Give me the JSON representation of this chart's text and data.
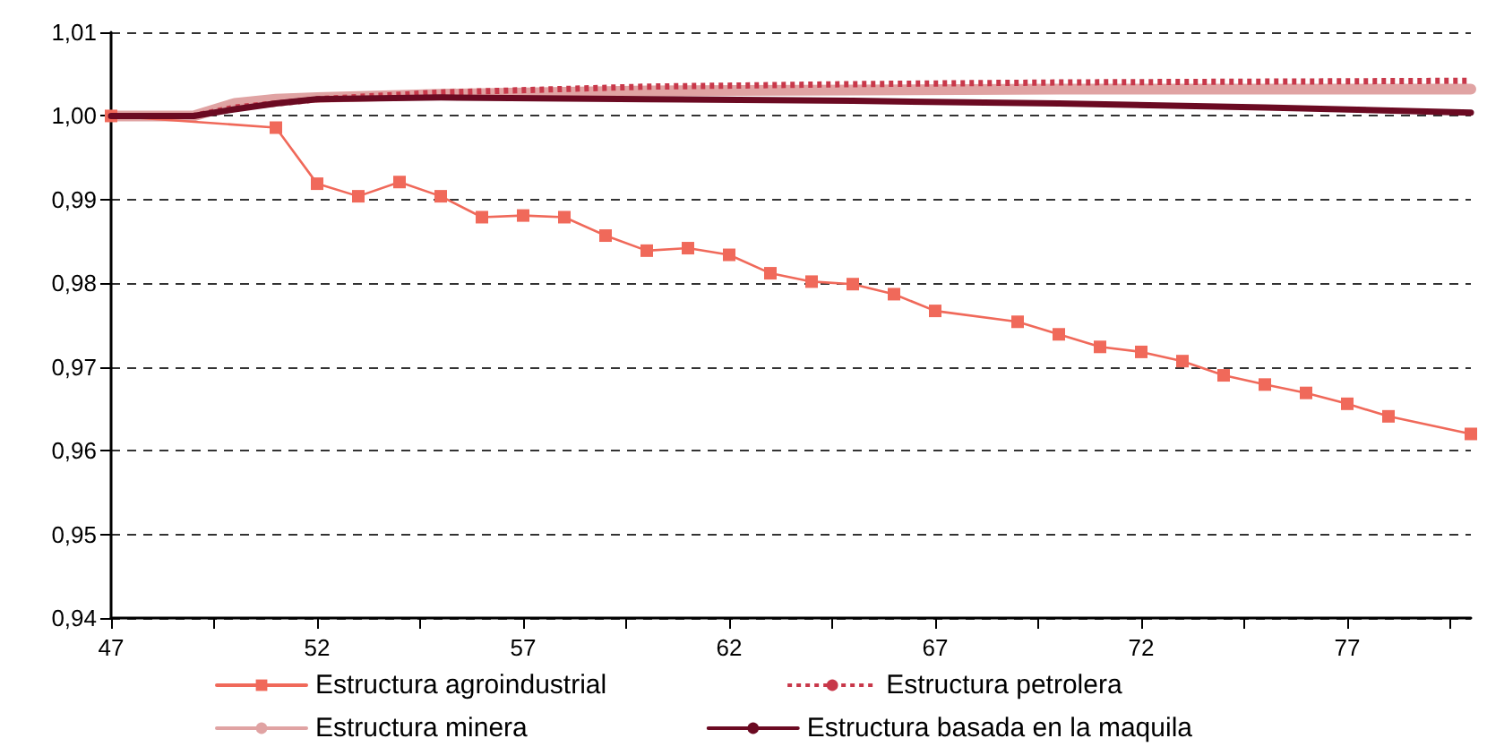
{
  "chart_data": {
    "type": "line",
    "xlim": [
      47,
      80
    ],
    "xticks": [
      47,
      {
        "value": 49.5,
        "label": null
      },
      52,
      {
        "value": 54.5,
        "label": null
      },
      57,
      {
        "value": 59.5,
        "label": null
      },
      62,
      {
        "value": 64.5,
        "label": null
      },
      67,
      {
        "value": 69.5,
        "label": null
      },
      72,
      {
        "value": 74.5,
        "label": null
      },
      77,
      {
        "value": 79.5,
        "label": null
      }
    ],
    "ylim": [
      0.94,
      1.01
    ],
    "yticks": [
      {
        "value": 0.94,
        "label": "0,94"
      },
      {
        "value": 0.95,
        "label": "0,95"
      },
      {
        "value": 0.96,
        "label": "0,96"
      },
      {
        "value": 0.97,
        "label": "0,97"
      },
      {
        "value": 0.98,
        "label": "0,98"
      },
      {
        "value": 0.99,
        "label": "0,99"
      },
      {
        "value": 1.0,
        "label": "1,00"
      },
      {
        "value": 1.01,
        "label": "1,01"
      }
    ],
    "grid": "y",
    "legend": "bottom",
    "series": [
      {
        "name": "Estructura agroindustrial",
        "color": "#f0695a",
        "marker": "square",
        "line_style": "solid",
        "x": [
          47,
          51,
          52,
          53,
          54,
          55,
          56,
          57,
          58,
          59,
          60,
          61,
          62,
          63,
          64,
          65,
          66,
          67,
          69,
          70,
          71,
          72,
          73,
          74,
          75,
          76,
          77,
          78,
          80
        ],
        "values": [
          1.0,
          0.9986,
          0.9919,
          0.9904,
          0.9921,
          0.9904,
          0.9879,
          0.9881,
          0.9879,
          0.9857,
          0.9839,
          0.9842,
          0.9834,
          0.9812,
          0.9802,
          0.9799,
          0.9787,
          0.9767,
          0.9754,
          0.9739,
          0.9724,
          0.9718,
          0.9707,
          0.969,
          0.9679,
          0.9669,
          0.9656,
          0.9641,
          0.962
        ]
      },
      {
        "name": "Estructura minera",
        "color": "#e0a3a3",
        "marker": "none",
        "line_style": "solid",
        "x": [
          47,
          48,
          49,
          50,
          51,
          52,
          55,
          60,
          65,
          70,
          75,
          80
        ],
        "values": [
          1.0,
          1.0,
          1.0,
          1.0015,
          1.002,
          1.0022,
          1.0026,
          1.003,
          1.0031,
          1.0032,
          1.0032,
          1.0032
        ]
      },
      {
        "name": "Estructura petrolera",
        "color": "#c8384a",
        "marker": "none",
        "line_style": "dotted",
        "x": [
          47,
          48,
          49,
          50,
          51,
          52,
          55,
          60,
          65,
          70,
          75,
          80
        ],
        "values": [
          1.0,
          1.0,
          1.0,
          1.001,
          1.0015,
          1.002,
          1.0028,
          1.0035,
          1.0038,
          1.004,
          1.0041,
          1.0042
        ]
      },
      {
        "name": "Estructura basada en la maquila",
        "color": "#6b0a22",
        "marker": "none",
        "line_style": "solid",
        "x": [
          47,
          48,
          49,
          50,
          51,
          52,
          55,
          60,
          65,
          70,
          75,
          80
        ],
        "values": [
          1.0,
          1.0,
          1.0,
          1.0008,
          1.0015,
          1.002,
          1.0022,
          1.002,
          1.0018,
          1.0015,
          1.001,
          1.0004
        ]
      }
    ]
  }
}
